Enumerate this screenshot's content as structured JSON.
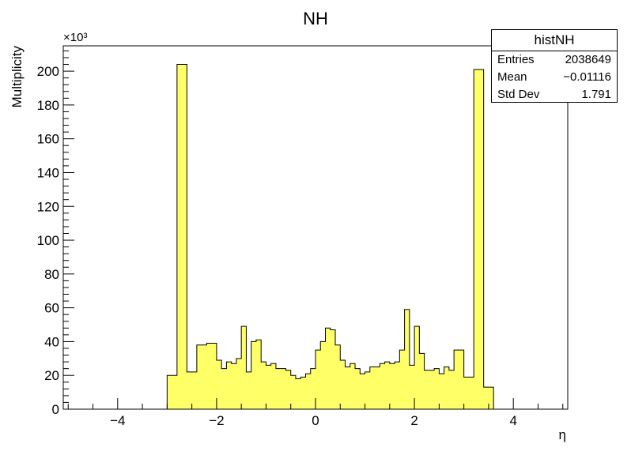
{
  "chart_data": {
    "type": "histogram",
    "title": "NH",
    "xlabel": "η",
    "ylabel": "Multiplicity",
    "y_exponent_label": "×10³",
    "y_multiplier": 1000,
    "xlim": [
      -5.1,
      5.1
    ],
    "ylim": [
      0,
      215
    ],
    "x_ticks": [
      -4,
      -2,
      0,
      2,
      4
    ],
    "x_tick_labels": [
      "−4",
      "−2",
      "0",
      "2",
      "4"
    ],
    "y_ticks": [
      0,
      20,
      40,
      60,
      80,
      100,
      120,
      140,
      160,
      180,
      200
    ],
    "y_tick_labels": [
      "0",
      "20",
      "40",
      "60",
      "80",
      "100",
      "120",
      "140",
      "160",
      "180",
      "200"
    ],
    "bin_edges": [
      -5.1,
      -4.9,
      -4.7,
      -4.5,
      -4.3,
      -4.1,
      -3.9,
      -3.7,
      -3.5,
      -3.3,
      -3.1,
      -2.9,
      -2.7,
      -2.5,
      -2.3,
      -2.1,
      -1.9,
      -1.7,
      -1.5,
      -1.3,
      -1.1,
      -0.9,
      -0.7,
      -0.5,
      -0.3,
      -0.1,
      0.1,
      0.3,
      0.5,
      0.7,
      0.9,
      1.1,
      1.3,
      1.5,
      1.7,
      1.9,
      2.1,
      2.3,
      2.5,
      2.7,
      2.9,
      3.1,
      3.3,
      3.5,
      3.7,
      3.9,
      4.1,
      4.3,
      4.5,
      4.7,
      4.9,
      5.1
    ],
    "bins": [
      [
        -3.0,
        -2.8,
        20
      ],
      [
        -2.8,
        -2.6,
        204
      ],
      [
        -2.6,
        -2.4,
        22
      ],
      [
        -2.4,
        -2.2,
        38
      ],
      [
        -2.2,
        -2.0,
        39
      ],
      [
        -2.0,
        -1.9,
        29
      ],
      [
        -1.9,
        -1.8,
        24
      ],
      [
        -1.8,
        -1.7,
        28
      ],
      [
        -1.7,
        -1.6,
        27
      ],
      [
        -1.6,
        -1.5,
        30
      ],
      [
        -1.5,
        -1.4,
        49
      ],
      [
        -1.4,
        -1.3,
        22
      ],
      [
        -1.3,
        -1.2,
        40
      ],
      [
        -1.2,
        -1.1,
        41
      ],
      [
        -1.1,
        -1.0,
        28
      ],
      [
        -1.0,
        -0.9,
        26
      ],
      [
        -0.9,
        -0.8,
        27
      ],
      [
        -0.8,
        -0.7,
        24
      ],
      [
        -0.7,
        -0.6,
        24
      ],
      [
        -0.6,
        -0.5,
        23
      ],
      [
        -0.5,
        -0.4,
        20
      ],
      [
        -0.4,
        -0.3,
        18
      ],
      [
        -0.3,
        -0.2,
        19
      ],
      [
        -0.2,
        -0.1,
        21
      ],
      [
        -0.1,
        0.0,
        24
      ],
      [
        0.0,
        0.1,
        35
      ],
      [
        0.1,
        0.2,
        40
      ],
      [
        0.2,
        0.3,
        48
      ],
      [
        0.3,
        0.4,
        47
      ],
      [
        0.4,
        0.5,
        38
      ],
      [
        0.5,
        0.6,
        29
      ],
      [
        0.6,
        0.7,
        25
      ],
      [
        0.7,
        0.8,
        27
      ],
      [
        0.8,
        0.9,
        24
      ],
      [
        0.9,
        1.0,
        21
      ],
      [
        1.0,
        1.1,
        22
      ],
      [
        1.1,
        1.2,
        25
      ],
      [
        1.2,
        1.3,
        25
      ],
      [
        1.3,
        1.4,
        27
      ],
      [
        1.4,
        1.5,
        28
      ],
      [
        1.5,
        1.6,
        27
      ],
      [
        1.6,
        1.7,
        28
      ],
      [
        1.7,
        1.8,
        35
      ],
      [
        1.8,
        1.9,
        59
      ],
      [
        1.9,
        2.0,
        26
      ],
      [
        2.0,
        2.1,
        49
      ],
      [
        2.1,
        2.2,
        33
      ],
      [
        2.2,
        2.3,
        23
      ],
      [
        2.3,
        2.4,
        23
      ],
      [
        2.4,
        2.5,
        24
      ],
      [
        2.5,
        2.6,
        21
      ],
      [
        2.6,
        2.7,
        25
      ],
      [
        2.7,
        2.8,
        23
      ],
      [
        2.8,
        3.0,
        35
      ],
      [
        3.0,
        3.2,
        19
      ],
      [
        3.2,
        3.4,
        201
      ],
      [
        3.4,
        3.6,
        13
      ]
    ],
    "fill_color": "#ffff66",
    "line_color": "#000000",
    "grid": false,
    "legend": "none"
  },
  "stats_box": {
    "title": "histNH",
    "rows": [
      {
        "label": "Entries",
        "value": "2038649"
      },
      {
        "label": "Mean",
        "value": "−0.01116"
      },
      {
        "label": "Std Dev",
        "value": "1.791"
      }
    ]
  }
}
